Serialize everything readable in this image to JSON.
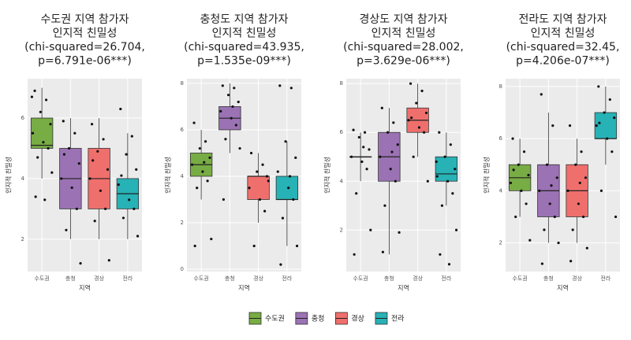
{
  "chart_data": [
    {
      "type": "boxplot",
      "title": [
        "수도권 지역 참가자",
        "인지적 친밀성",
        "(chi-squared=26.704,",
        "p=6.791e-06***)"
      ],
      "xlabel": "지역",
      "ylabel": "인지적 친밀성",
      "categories": [
        "수도권",
        "충청",
        "경상",
        "전라"
      ],
      "colors": [
        "#78ac44",
        "#9b72b3",
        "#ef6f6c",
        "#27b2b6"
      ],
      "boxes": [
        {
          "min": 4,
          "q1": 5,
          "median": 5.1,
          "q3": 6,
          "max": 7
        },
        {
          "min": 2,
          "q1": 3,
          "median": 4,
          "q3": 5,
          "max": 6
        },
        {
          "min": 2,
          "q1": 3,
          "median": 4,
          "q3": 5,
          "max": 6
        },
        {
          "min": 2,
          "q1": 3,
          "median": 3.5,
          "q3": 4,
          "max": 5.5
        }
      ],
      "points": [
        [
          6.9,
          6.6,
          6.2,
          5.8,
          5.5,
          5.2,
          5,
          4.7,
          4.2,
          3.4,
          3.3,
          6.7
        ],
        [
          5.9,
          5.5,
          5,
          4.5,
          4,
          3.7,
          3,
          2.3,
          1.2,
          4.8
        ],
        [
          5.8,
          5.3,
          4.9,
          4.3,
          4,
          3.6,
          3,
          2.6,
          1.3,
          4.6
        ],
        [
          6.3,
          5.4,
          4.8,
          4.3,
          3.8,
          3.3,
          3,
          2.7,
          2.1,
          4.1
        ]
      ],
      "ylim": [
        0.93,
        7.3
      ],
      "yticks": [
        2,
        4,
        6
      ]
    },
    {
      "type": "boxplot",
      "title": [
        "충청도 지역 참가자",
        "인지적 친밀성",
        "(chi-squared=43.935,",
        "p=1.535e-09***)"
      ],
      "xlabel": "지역",
      "ylabel": "인지적 친밀성",
      "categories": [
        "수도권",
        "충청",
        "경상",
        "전라"
      ],
      "colors": [
        "#78ac44",
        "#9b72b3",
        "#ef6f6c",
        "#27b2b6"
      ],
      "boxes": [
        {
          "min": 3,
          "q1": 4,
          "median": 4.5,
          "q3": 5,
          "max": 6
        },
        {
          "min": 5,
          "q1": 6,
          "median": 6.5,
          "q3": 7,
          "max": 8
        },
        {
          "min": 2,
          "q1": 3,
          "median": 4,
          "q3": 4,
          "max": 5
        },
        {
          "min": 1,
          "q1": 3,
          "median": 3,
          "q3": 4,
          "max": 5.5
        }
      ],
      "points": [
        [
          6.3,
          5.5,
          5.2,
          4.8,
          4.5,
          4.2,
          3.8,
          3.5,
          1.3,
          1,
          4.6
        ],
        [
          7.9,
          7.8,
          7.5,
          7.2,
          6.8,
          6.5,
          6.2,
          5.6,
          5.2,
          3,
          7
        ],
        [
          5,
          4.5,
          4.2,
          4,
          3.5,
          3,
          2.5,
          1,
          3.8
        ],
        [
          7.9,
          7.8,
          5.5,
          4.8,
          4.2,
          3.5,
          3,
          2.2,
          1,
          0.2,
          4
        ]
      ],
      "ylim": [
        -0.1,
        8.2
      ],
      "yticks": [
        0,
        2,
        4,
        6,
        8
      ]
    },
    {
      "type": "boxplot",
      "title": [
        "경상도 지역 참가자",
        "인지적 친밀성",
        "(chi-squared=28.002,",
        "p=3.629e-06***)"
      ],
      "xlabel": "지역",
      "ylabel": "인지적 친밀성",
      "categories": [
        "수도권",
        "충청",
        "경상",
        "전라"
      ],
      "colors": [
        "#78ac44",
        "#9b72b3",
        "#ef6f6c",
        "#27b2b6"
      ],
      "boxes": [
        {
          "min": 4,
          "q1": 5,
          "median": 5,
          "q3": 5,
          "max": 6
        },
        {
          "min": 1,
          "q1": 4,
          "median": 5,
          "q3": 6,
          "max": 7
        },
        {
          "min": 5,
          "q1": 6,
          "median": 6.5,
          "q3": 7,
          "max": 8
        },
        {
          "min": 3,
          "q1": 4,
          "median": 4.3,
          "q3": 5,
          "max": 6
        }
      ],
      "points": [
        [
          6.1,
          6,
          5.8,
          5.3,
          5,
          4.8,
          4.5,
          3.5,
          2,
          1,
          5.4
        ],
        [
          7,
          6.4,
          6,
          5.5,
          5,
          4.5,
          4,
          3,
          1.9,
          1.1,
          5.2
        ],
        [
          8,
          7.7,
          7.2,
          6.8,
          6.5,
          6.2,
          6,
          5,
          4,
          6.6
        ],
        [
          6,
          5.5,
          5,
          4.5,
          4.2,
          4,
          3.5,
          3,
          2,
          1,
          0.6,
          4.8
        ]
      ],
      "ylim": [
        0.3,
        8.2
      ],
      "yticks": [
        2,
        4,
        6,
        8
      ]
    },
    {
      "type": "boxplot",
      "title": [
        "전라도 지역 참가자",
        "인지적 친밀성",
        "(chi-squared=32.45,",
        "p=4.206e-07***)"
      ],
      "xlabel": "지역",
      "ylabel": "인지적 친밀성",
      "categories": [
        "수도권",
        "충청",
        "경상",
        "전라"
      ],
      "colors": [
        "#78ac44",
        "#9b72b3",
        "#ef6f6c",
        "#27b2b6"
      ],
      "boxes": [
        {
          "min": 3,
          "q1": 4,
          "median": 4.5,
          "q3": 5,
          "max": 6
        },
        {
          "min": 2,
          "q1": 3,
          "median": 4,
          "q3": 5,
          "max": 7
        },
        {
          "min": 2,
          "q1": 3,
          "median": 4,
          "q3": 5,
          "max": 6
        },
        {
          "min": 5,
          "q1": 6,
          "median": 6,
          "q3": 7,
          "max": 8
        }
      ],
      "points": [
        [
          6,
          5.5,
          5,
          4.6,
          4.3,
          4,
          3.5,
          3,
          2.1,
          4.8
        ],
        [
          7.7,
          6.5,
          5,
          4.5,
          4,
          3.5,
          3,
          2.5,
          2,
          1.2,
          4.2
        ],
        [
          6.5,
          5.5,
          5,
          4.5,
          4,
          3.5,
          3,
          2.5,
          1.8,
          1.3,
          4.3
        ],
        [
          8,
          7.5,
          7,
          6.8,
          6.5,
          6,
          5.5,
          4,
          3,
          6.6
        ]
      ],
      "ylim": [
        0.9,
        8.3
      ],
      "yticks": [
        2,
        4,
        6,
        8
      ]
    }
  ],
  "legend": {
    "labels": [
      "수도권",
      "충청",
      "경상",
      "전라"
    ],
    "colors": [
      "#78ac44",
      "#9b72b3",
      "#ef6f6c",
      "#27b2b6"
    ]
  }
}
